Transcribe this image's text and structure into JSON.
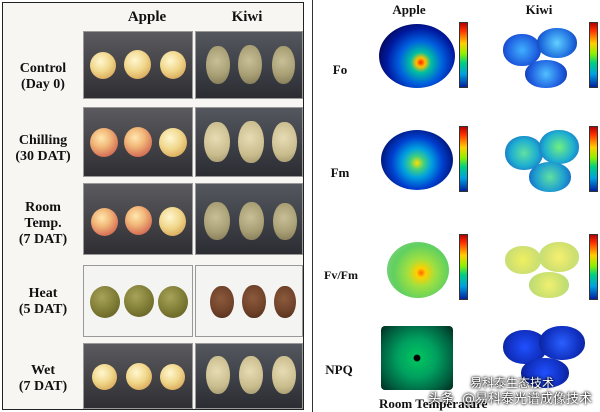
{
  "left": {
    "col_headers": [
      "Apple",
      "Kiwi"
    ],
    "rows": [
      {
        "label_line1": "Control",
        "label_line2": "(Day 0)"
      },
      {
        "label_line1": "Chilling",
        "label_line2": "(30 DAT)"
      },
      {
        "label_line1": "Room",
        "label_line2": "Temp.",
        "label_line3": "(7 DAT)"
      },
      {
        "label_line1": "Heat",
        "label_line2": "(5 DAT)"
      },
      {
        "label_line1": "Wet",
        "label_line2": "(7 DAT)"
      }
    ]
  },
  "right": {
    "col_headers": [
      "Apple",
      "Kiwi"
    ],
    "row_labels": [
      "Fo",
      "Fm",
      "Fv/Fm",
      "NPQ"
    ],
    "caption": "Room Temperature"
  },
  "watermark": {
    "left": "头条",
    "right": "@易科泰光谱成像技术",
    "overlay": "易科泰生态技术"
  },
  "colors": {
    "panel_border": "#222222",
    "background": "#ffffff"
  }
}
